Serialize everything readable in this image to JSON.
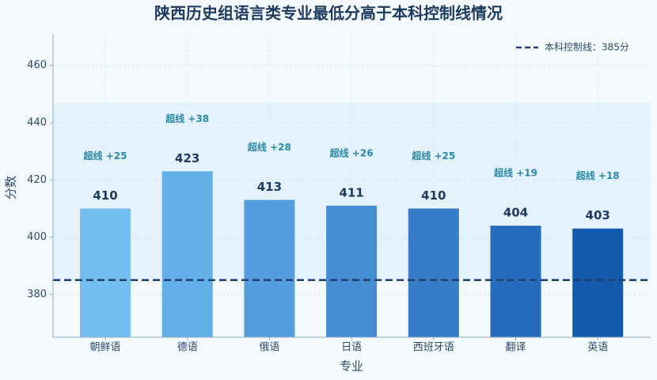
{
  "chart_data": {
    "type": "bar",
    "title": "陕西历史组语言类专业最低分高于本科控制线情况",
    "x_label": "专业",
    "y_label": "分数",
    "categories": [
      "朝鲜语",
      "德语",
      "俄语",
      "日语",
      "西班牙语",
      "翻译",
      "英语"
    ],
    "values": [
      410,
      423,
      413,
      411,
      410,
      404,
      403
    ],
    "colors": [
      "#74bff0",
      "#62aee6",
      "#549edd",
      "#448dd3",
      "#357dc9",
      "#256cbc",
      "#135aad"
    ],
    "annotations": [
      "超线 +25",
      "超线 +38",
      "超线 +28",
      "超线 +26",
      "超线 +25",
      "超线 +19",
      "超线 +18"
    ],
    "reference_line": {
      "value": 385,
      "label": "本科控制线：385分",
      "color": "#1f3f6e"
    },
    "highlight_band": [
      385,
      447
    ],
    "ylim": [
      365,
      471
    ],
    "yticks": [
      380,
      400,
      420,
      440,
      460
    ],
    "grid": true,
    "legend_position": "upper right"
  }
}
